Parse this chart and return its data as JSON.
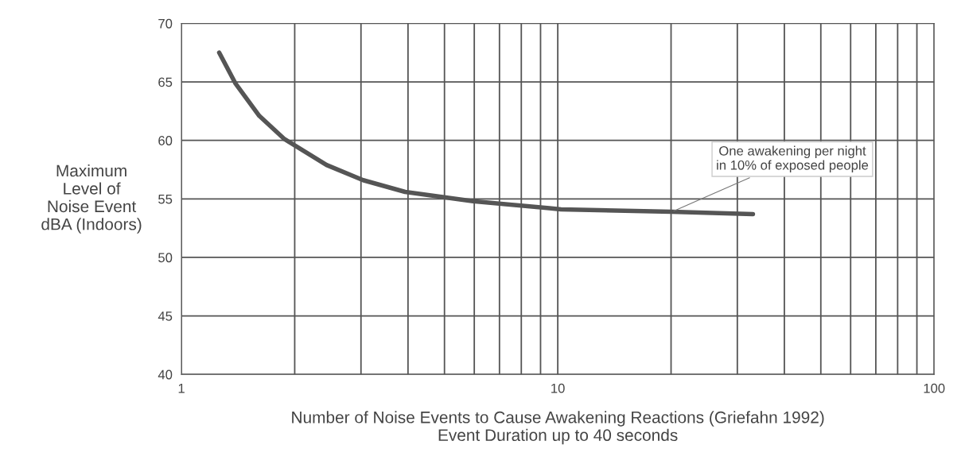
{
  "chart_data": {
    "type": "line",
    "xlabel": "Number of Noise Events to Cause Awakening Reactions (Griefahn 1992)\nEvent Duration up to 40 seconds",
    "ylabel": "Maximum\nLevel of\nNoise Event\ndBA (Indoors)",
    "log": "x",
    "x": [
      1.26,
      1.39,
      1.61,
      1.88,
      2.43,
      3.04,
      3.93,
      5.96,
      9.5,
      10.2,
      20.1,
      33
    ],
    "series": [
      {
        "color": "#555555",
        "values": [
          67.5,
          64.9,
          62.1,
          60.1,
          57.9,
          56.6,
          55.6,
          54.8,
          54.2,
          54.1,
          53.9,
          53.7
        ]
      }
    ],
    "xlim": [
      1,
      100
    ],
    "xticks": [
      1,
      {
        "value": 2,
        "label": null
      },
      {
        "value": 3,
        "label": null
      },
      {
        "value": 4,
        "label": null
      },
      {
        "value": 5,
        "label": null
      },
      {
        "value": 6,
        "label": null
      },
      {
        "value": 7,
        "label": null
      },
      {
        "value": 8,
        "label": null
      },
      {
        "value": 9,
        "label": null
      },
      10,
      {
        "value": 20,
        "label": null
      },
      {
        "value": 30,
        "label": null
      },
      {
        "value": 40,
        "label": null
      },
      {
        "value": 50,
        "label": null
      },
      {
        "value": 60,
        "label": null
      },
      {
        "value": 70,
        "label": null
      },
      {
        "value": 80,
        "label": null
      },
      {
        "value": 90,
        "label": null
      },
      100
    ],
    "ylim": [
      40,
      70
    ],
    "yticks": [
      40,
      45,
      50,
      55,
      60,
      65,
      70
    ],
    "grid": true,
    "marker": "none",
    "line_style": "solid",
    "annotations": [
      {
        "text": "One awakening per night\nin 10% of exposed people",
        "x": 20.1,
        "y": 53.9
      }
    ]
  }
}
